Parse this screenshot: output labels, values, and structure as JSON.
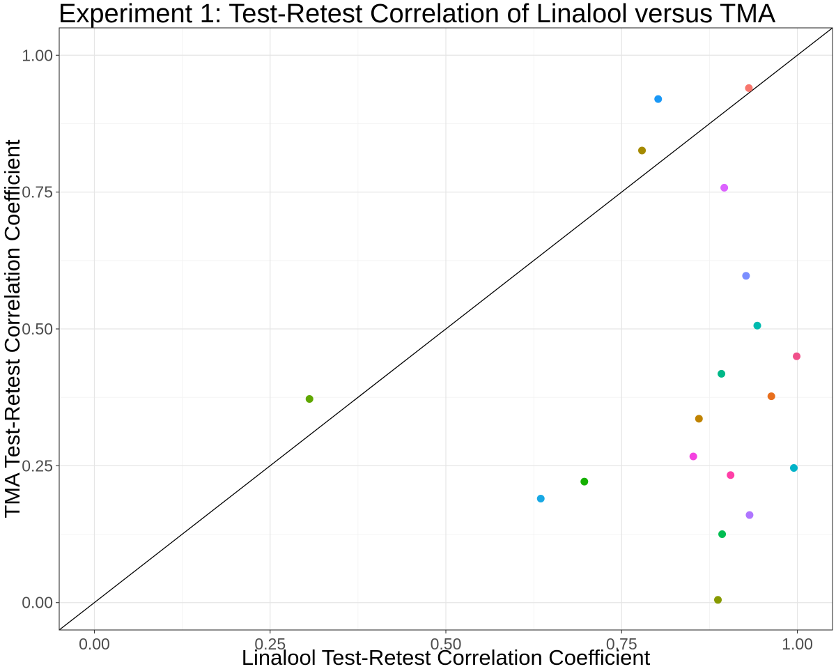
{
  "chart_data": {
    "type": "scatter",
    "title": "Experiment 1: Test-Retest Correlation of Linalool versus TMA",
    "xlabel": "Linalool Test-Retest Correlation Coefficient",
    "ylabel": "TMA Test-Retest Correlation Coefficient",
    "xlim": [
      -0.05,
      1.05
    ],
    "ylim": [
      -0.05,
      1.05
    ],
    "x_ticks": [
      0.0,
      0.25,
      0.5,
      0.75,
      1.0
    ],
    "y_ticks": [
      0.0,
      0.25,
      0.5,
      0.75,
      1.0
    ],
    "x_tick_labels": [
      "0.00",
      "0.25",
      "0.50",
      "0.75",
      "1.00"
    ],
    "y_tick_labels": [
      "0.00",
      "0.25",
      "0.50",
      "0.75",
      "1.00"
    ],
    "grid": true,
    "reference_line": {
      "type": "identity",
      "color": "#000000"
    },
    "points": [
      {
        "x": 0.931,
        "y": 0.94,
        "color": "#F8766D"
      },
      {
        "x": 0.802,
        "y": 0.92,
        "color": "#1A98F6"
      },
      {
        "x": 0.779,
        "y": 0.826,
        "color": "#A58A00"
      },
      {
        "x": 0.896,
        "y": 0.758,
        "color": "#DC62FF"
      },
      {
        "x": 0.927,
        "y": 0.597,
        "color": "#7A8EFF"
      },
      {
        "x": 0.943,
        "y": 0.506,
        "color": "#00BBAF"
      },
      {
        "x": 0.999,
        "y": 0.45,
        "color": "#F0508A"
      },
      {
        "x": 0.892,
        "y": 0.418,
        "color": "#00B888"
      },
      {
        "x": 0.963,
        "y": 0.377,
        "color": "#E86F1D"
      },
      {
        "x": 0.306,
        "y": 0.372,
        "color": "#5FA700"
      },
      {
        "x": 0.86,
        "y": 0.336,
        "color": "#C08300"
      },
      {
        "x": 0.852,
        "y": 0.267,
        "color": "#F442E0"
      },
      {
        "x": 0.995,
        "y": 0.246,
        "color": "#00B3C8"
      },
      {
        "x": 0.905,
        "y": 0.233,
        "color": "#FF3FA7"
      },
      {
        "x": 0.697,
        "y": 0.221,
        "color": "#15B000"
      },
      {
        "x": 0.635,
        "y": 0.19,
        "color": "#18A8E4"
      },
      {
        "x": 0.932,
        "y": 0.16,
        "color": "#AF75FF"
      },
      {
        "x": 0.893,
        "y": 0.125,
        "color": "#00BE52"
      },
      {
        "x": 0.887,
        "y": 0.005,
        "color": "#879A00"
      }
    ]
  }
}
